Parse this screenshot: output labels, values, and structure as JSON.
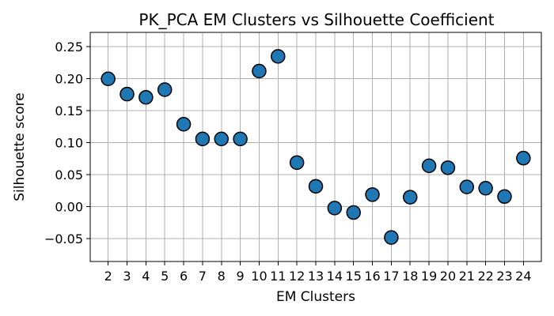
{
  "chart_data": {
    "type": "scatter",
    "title": "PK_PCA EM Clusters vs Silhouette Coefficient",
    "xlabel": "EM Clusters",
    "ylabel": "Silhouette score",
    "x": [
      2,
      3,
      4,
      5,
      6,
      7,
      8,
      9,
      10,
      11,
      12,
      13,
      14,
      15,
      16,
      17,
      18,
      19,
      20,
      21,
      22,
      23,
      24
    ],
    "y": [
      0.2,
      0.176,
      0.171,
      0.183,
      0.129,
      0.106,
      0.106,
      0.106,
      0.212,
      0.235,
      0.069,
      0.032,
      -0.002,
      -0.009,
      0.019,
      -0.048,
      0.015,
      0.064,
      0.061,
      0.031,
      0.029,
      0.016,
      0.076
    ],
    "xticks": [
      "2",
      "3",
      "4",
      "5",
      "6",
      "7",
      "8",
      "9",
      "10",
      "11",
      "12",
      "13",
      "14",
      "15",
      "16",
      "17",
      "18",
      "19",
      "20",
      "21",
      "22",
      "23",
      "24"
    ],
    "yticks": [
      "−0.05",
      "0.00",
      "0.05",
      "0.10",
      "0.15",
      "0.20",
      "0.25"
    ],
    "ytick_values": [
      -0.05,
      0.0,
      0.05,
      0.1,
      0.15,
      0.2,
      0.25
    ],
    "xlim": [
      1.05,
      24.95
    ],
    "ylim": [
      -0.0855,
      0.2725
    ],
    "grid": true,
    "marker_color": "#1f77b4",
    "edge_color": "#000000"
  }
}
